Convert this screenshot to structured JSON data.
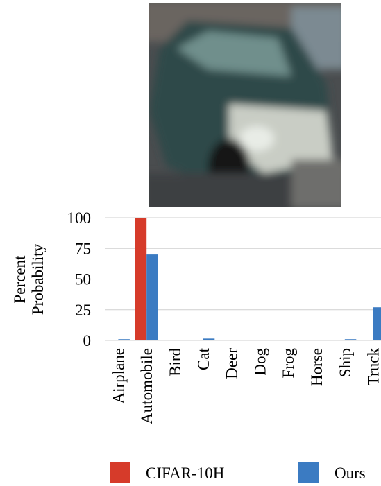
{
  "chart_data": {
    "type": "bar",
    "ylabel": [
      "Percent",
      "Probability"
    ],
    "categories": [
      "Airplane",
      "Automobile",
      "Bird",
      "Cat",
      "Deer",
      "Dog",
      "Frog",
      "Horse",
      "Ship",
      "Truck"
    ],
    "series": [
      {
        "name": "CIFAR-10H",
        "color": "#d63b2a",
        "values": [
          0,
          100,
          0,
          0,
          0,
          0,
          0,
          0,
          0,
          0
        ]
      },
      {
        "name": "Ours",
        "color": "#3b7bc2",
        "values": [
          1,
          70,
          0,
          1.5,
          0,
          0,
          0,
          0,
          1,
          27
        ]
      }
    ],
    "ylim": [
      0,
      100
    ],
    "yticks": [
      0,
      25,
      50,
      75,
      100
    ],
    "grid": true
  }
}
